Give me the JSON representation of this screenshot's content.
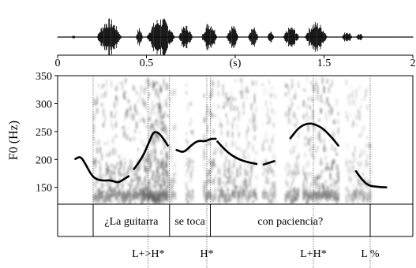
{
  "chart_data": {
    "type": "line",
    "time_axis": {
      "ticks": [
        "0",
        "0.5",
        "(s)",
        "1.5",
        "2"
      ],
      "tick_values": [
        0,
        0.5,
        1.0,
        1.5,
        2.0
      ],
      "range": [
        0,
        2.0
      ]
    },
    "f0_axis": {
      "label": "F0 (Hz)",
      "ticks": [
        "350",
        "300",
        "250",
        "200",
        "150"
      ],
      "tick_values": [
        350,
        300,
        250,
        200,
        150
      ],
      "range": [
        120,
        350
      ]
    },
    "series": [
      {
        "values": [
          [
            0.1,
            201
          ],
          [
            0.13,
            206
          ],
          [
            0.16,
            190
          ],
          [
            0.19,
            172
          ],
          [
            0.22,
            164
          ],
          [
            0.26,
            162
          ],
          [
            0.3,
            163
          ],
          [
            0.34,
            158
          ],
          [
            0.37,
            164
          ],
          [
            0.4,
            170
          ]
        ]
      },
      {
        "values": [
          [
            0.43,
            183
          ],
          [
            0.48,
            205
          ],
          [
            0.52,
            235
          ],
          [
            0.54,
            250
          ],
          [
            0.57,
            248
          ],
          [
            0.6,
            235
          ],
          [
            0.62,
            225
          ]
        ]
      },
      {
        "values": [
          [
            0.67,
            217
          ],
          [
            0.71,
            212
          ],
          [
            0.75,
            225
          ],
          [
            0.79,
            234
          ],
          [
            0.83,
            232
          ],
          [
            0.86,
            237
          ],
          [
            0.89,
            237
          ]
        ]
      },
      {
        "values": [
          [
            0.9,
            232
          ],
          [
            0.94,
            218
          ],
          [
            0.98,
            207
          ],
          [
            1.03,
            199
          ],
          [
            1.07,
            195
          ],
          [
            1.12,
            192
          ]
        ]
      },
      {
        "values": [
          [
            1.16,
            191
          ],
          [
            1.19,
            194
          ],
          [
            1.22,
            197
          ]
        ]
      },
      {
        "values": [
          [
            1.31,
            238
          ],
          [
            1.36,
            258
          ],
          [
            1.41,
            265
          ],
          [
            1.45,
            263
          ],
          [
            1.5,
            254
          ],
          [
            1.55,
            237
          ],
          [
            1.58,
            225
          ]
        ]
      },
      {
        "values": [
          [
            1.68,
            179
          ],
          [
            1.71,
            165
          ],
          [
            1.75,
            153
          ],
          [
            1.8,
            151
          ],
          [
            1.85,
            150
          ]
        ]
      }
    ]
  },
  "words": [
    {
      "text": "¿La guitarra",
      "start": 0.2,
      "end": 0.63
    },
    {
      "text": "se toca",
      "start": 0.63,
      "end": 0.86
    },
    {
      "text": "con paciencia?",
      "start": 0.86,
      "end": 1.76
    }
  ],
  "tones": [
    {
      "text": "L+>H*",
      "t": 0.51
    },
    {
      "text": "H*",
      "t": 0.84
    },
    {
      "text": "L+H*",
      "t": 1.44
    },
    {
      "text": "L %",
      "t": 1.76
    }
  ],
  "tone_guides": [
    0.51,
    0.84,
    1.44,
    1.76
  ],
  "word_guides": [
    0.2,
    0.63,
    0.86
  ],
  "colors": {
    "contour": "#000000",
    "spectrogram": "#5a5a5a",
    "axis": "#000000"
  }
}
